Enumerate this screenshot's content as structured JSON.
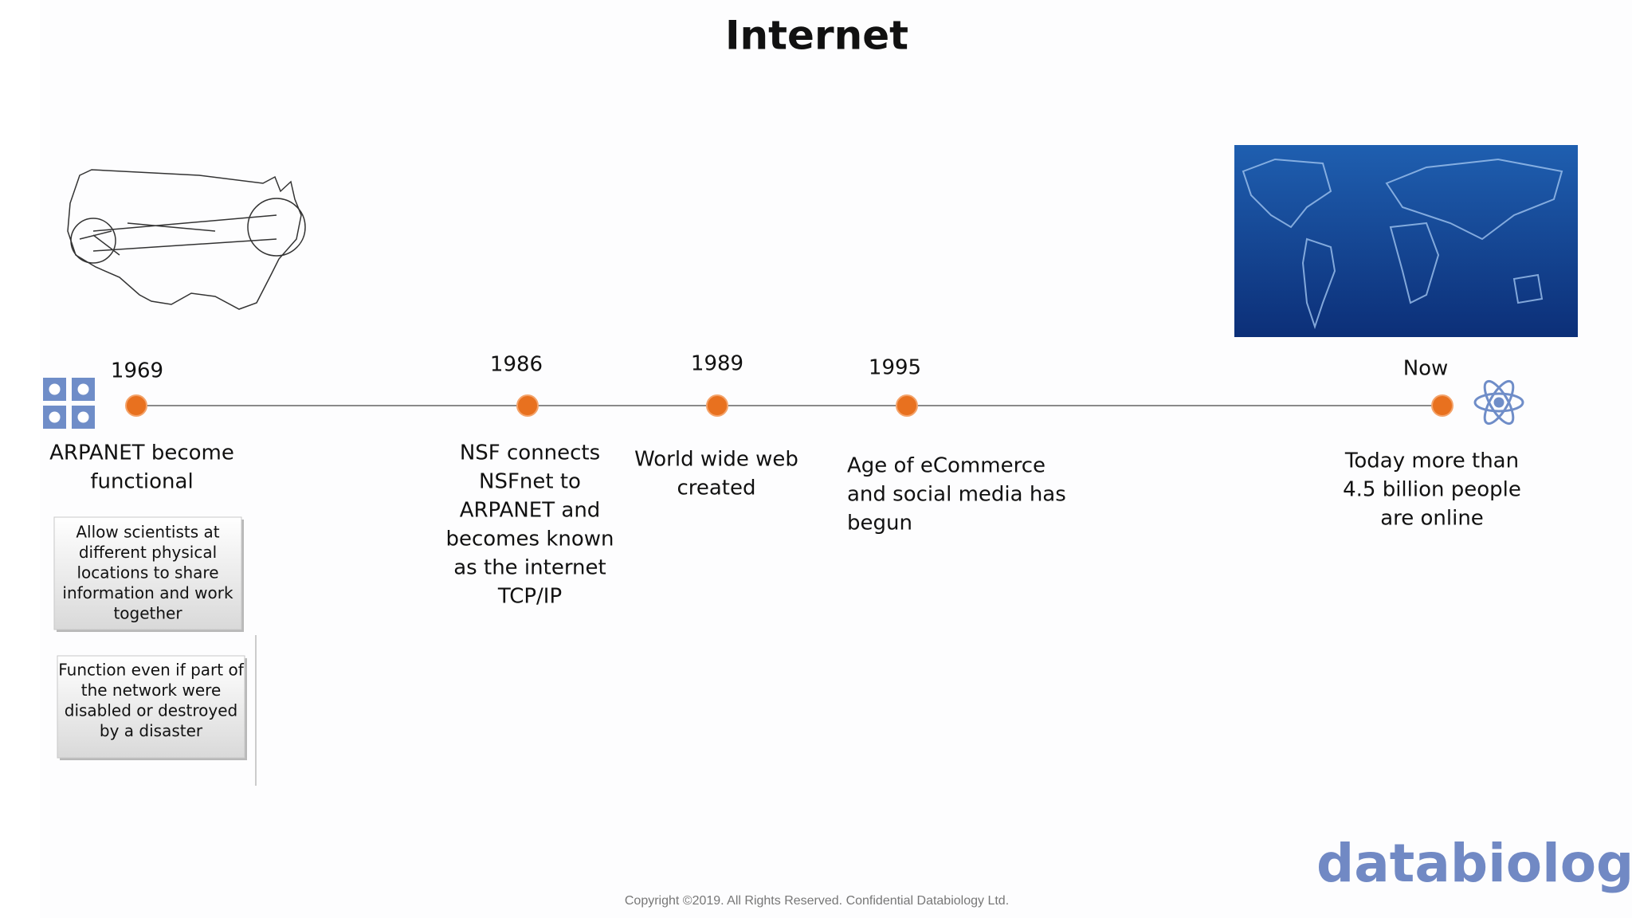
{
  "header": {
    "title": "Internet"
  },
  "timeline": {
    "events": [
      {
        "year": "1969",
        "description": [
          "ARPANET become",
          "functional"
        ]
      },
      {
        "year": "1986",
        "description": [
          "NSF connects",
          "NSFnet to",
          "ARPANET and",
          "becomes known",
          "as the internet",
          "TCP/IP"
        ]
      },
      {
        "year": "1989",
        "description": [
          "World wide web",
          "created"
        ]
      },
      {
        "year": "1995",
        "description": [
          "Age of eCommerce",
          "and social media has",
          "begun"
        ]
      },
      {
        "year": "Now",
        "description": [
          "Today more than",
          "4.5 billion people",
          "are online"
        ]
      }
    ]
  },
  "notes": [
    [
      "Allow scientists at",
      "different physical",
      "locations to share",
      "information and work",
      "together"
    ],
    [
      "Function even if part of",
      "the network were",
      "disabled or destroyed",
      "by a disaster"
    ]
  ],
  "footer": {
    "logo": "databiology",
    "copyright": "Copyright ©2019.  All Rights Reserved.  Confidential Databiology Ltd."
  }
}
